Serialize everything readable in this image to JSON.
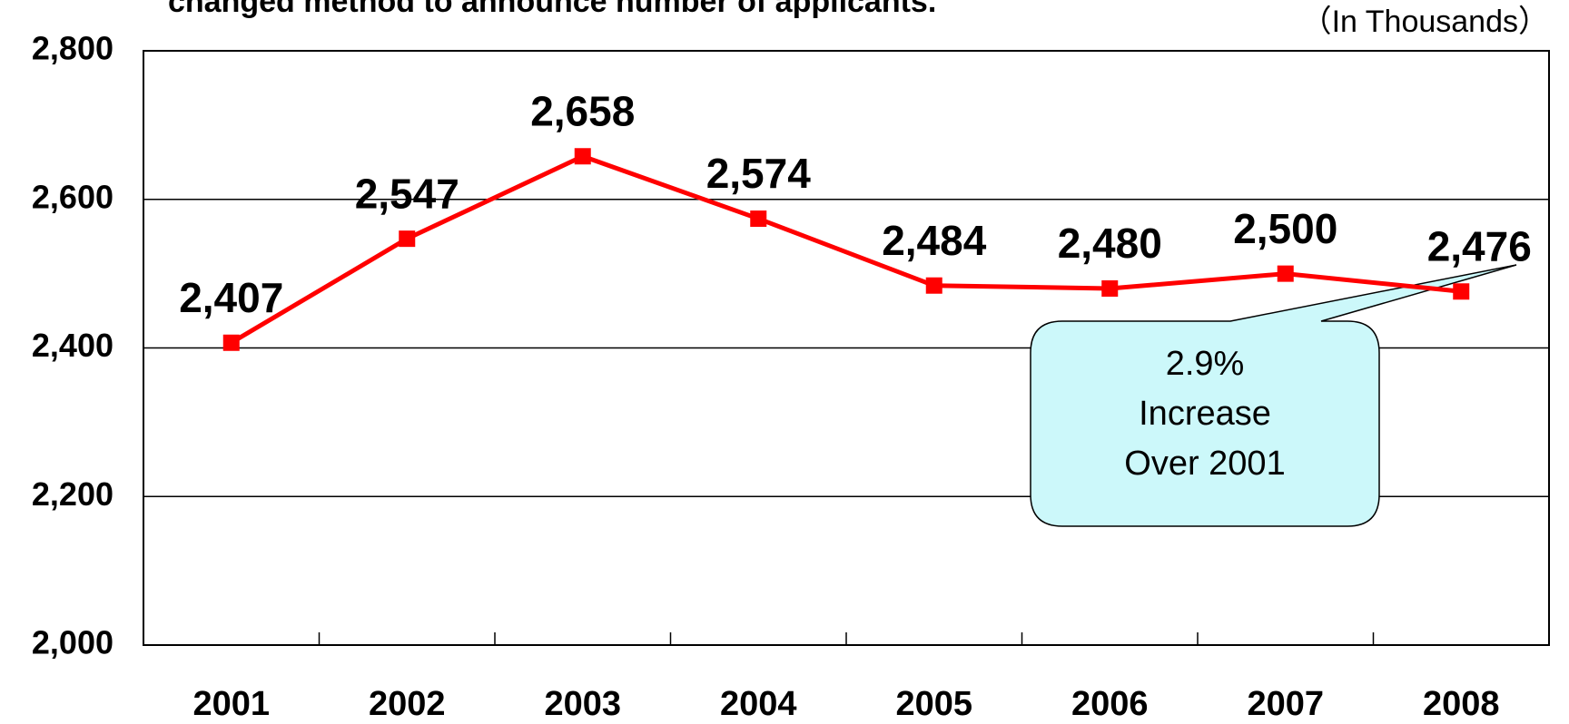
{
  "chart_data": {
    "type": "line",
    "subtitle": "changed method to announce number of applicants.",
    "unit_label": "（In Thousands）",
    "categories": [
      "2001",
      "2002",
      "2003",
      "2004",
      "2005",
      "2006",
      "2007",
      "2008"
    ],
    "series": [
      {
        "name": "Applicants",
        "color": "#ff0000",
        "values": [
          2407,
          2547,
          2658,
          2574,
          2484,
          2480,
          2500,
          2476
        ],
        "value_labels": [
          "2,407",
          "2,547",
          "2,658",
          "2,574",
          "2,484",
          "2,480",
          "2,500",
          "2,476"
        ]
      }
    ],
    "ylim": [
      2000,
      2800
    ],
    "yticks": [
      {
        "value": 2000,
        "label": "2,000"
      },
      {
        "value": 2200,
        "label": "2,200"
      },
      {
        "value": 2400,
        "label": "2,400"
      },
      {
        "value": 2600,
        "label": "2,600"
      },
      {
        "value": 2800,
        "label": "2,800"
      }
    ],
    "grid": true,
    "annotation": [
      "2.9%",
      "Increase",
      "Over 2001"
    ]
  }
}
